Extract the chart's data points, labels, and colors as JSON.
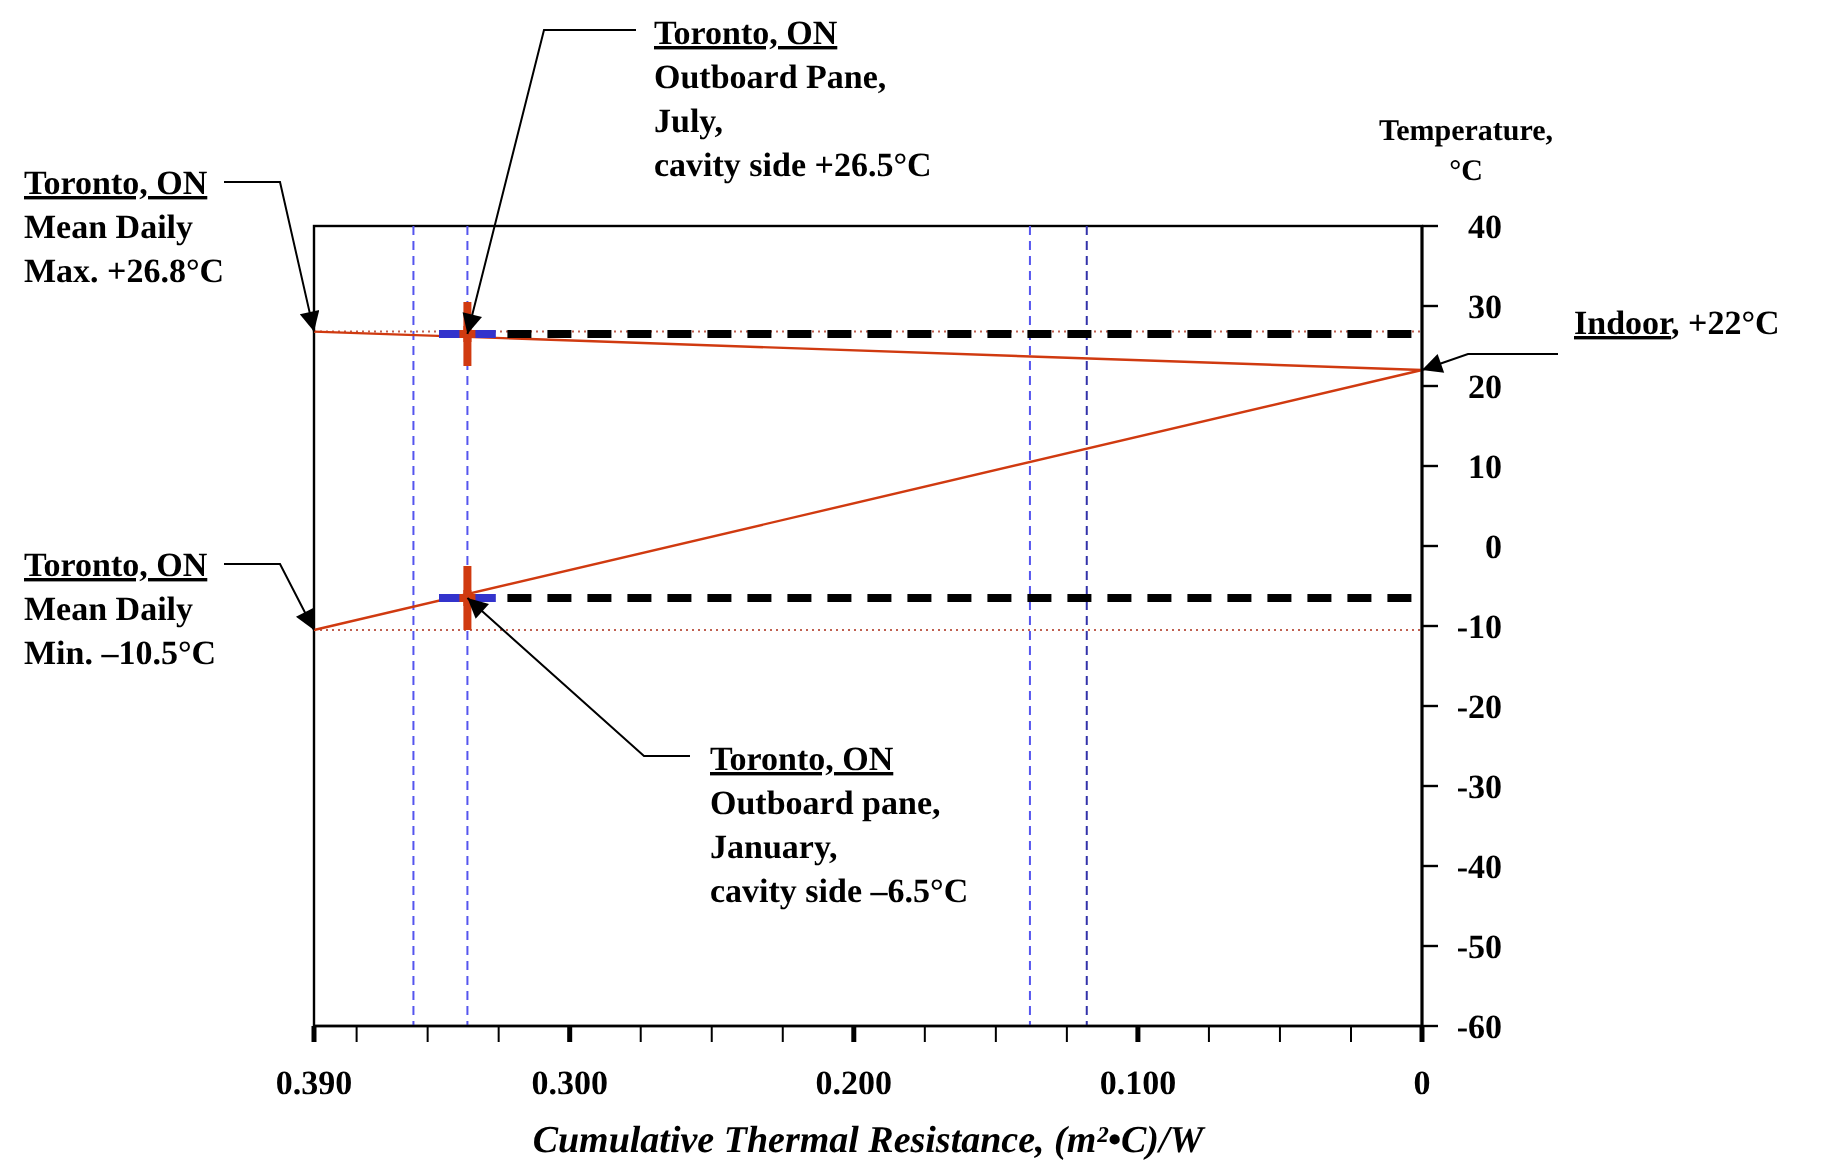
{
  "chart_data": {
    "type": "line",
    "xlabel": "Cumulative Thermal Resistance, (m²•C)/W",
    "ylabel": "Temperature,\n°C",
    "xlim": [
      0.39,
      0
    ],
    "xticks": [
      {
        "value": 0.39,
        "label": "0.390"
      },
      {
        "value": 0.375,
        "label": null
      },
      {
        "value": 0.35,
        "label": null
      },
      {
        "value": 0.325,
        "label": null
      },
      {
        "value": 0.3,
        "label": "0.300"
      },
      {
        "value": 0.275,
        "label": null
      },
      {
        "value": 0.25,
        "label": null
      },
      {
        "value": 0.225,
        "label": null
      },
      {
        "value": 0.2,
        "label": "0.200"
      },
      {
        "value": 0.175,
        "label": null
      },
      {
        "value": 0.15,
        "label": null
      },
      {
        "value": 0.125,
        "label": null
      },
      {
        "value": 0.1,
        "label": "0.100"
      },
      {
        "value": 0.075,
        "label": null
      },
      {
        "value": 0.05,
        "label": null
      },
      {
        "value": 0.025,
        "label": null
      },
      0
    ],
    "ylim": [
      -60,
      40
    ],
    "yticks": [
      -60,
      -50,
      -40,
      -30,
      -20,
      -10,
      0,
      10,
      20,
      30,
      40
    ],
    "grid": false,
    "series": [
      {
        "color": "#d03a10",
        "x": [
          0.39,
          0
        ],
        "values": [
          26.8,
          22
        ],
        "line_style": "solid"
      },
      {
        "color": "#d03a10",
        "x": [
          0.39,
          0
        ],
        "values": [
          -10.5,
          22
        ],
        "line_style": "solid"
      },
      {
        "color": "#000000",
        "x": [
          0.336,
          0
        ],
        "values": [
          26.5,
          26.5
        ],
        "line_style": "dashed"
      },
      {
        "color": "#000000",
        "x": [
          0.336,
          0
        ],
        "values": [
          -6.5,
          -6.5
        ],
        "line_style": "dashed"
      },
      {
        "type": "scatter",
        "color": "#d03a10",
        "x": [
          0.336,
          0.336
        ],
        "values": [
          26.5,
          -6.5
        ],
        "errors": [
          4,
          4
        ],
        "xerrors": [
          0.01,
          0.01
        ],
        "marker": "cross"
      }
    ],
    "ref_lines": [
      {
        "axis": "y",
        "value": 26.8,
        "color": "#c06050",
        "line_style": "dotted"
      },
      {
        "axis": "y",
        "value": -10.5,
        "color": "#c06050",
        "line_style": "dotted"
      },
      {
        "axis": "x",
        "value": 0.355,
        "color": "#5555ee",
        "line_style": "dashed"
      },
      {
        "axis": "x",
        "value": 0.336,
        "color": "#5555ee",
        "line_style": "dashed"
      },
      {
        "axis": "x",
        "value": 0.138,
        "color": "#5555ee",
        "line_style": "dashed"
      },
      {
        "axis": "x",
        "value": 0.118,
        "color": "#3333aa",
        "line_style": "dashed"
      }
    ],
    "annotations": [
      {
        "text": "Toronto, ON\nMean Daily\nMax. +26.8°C",
        "x": 0.39,
        "y": 26.8
      },
      {
        "text": "Toronto, ON\nOutboard Pane,\nJuly,\ncavity side +26.5°C",
        "x": 0.336,
        "y": 26.5
      },
      {
        "text": "Toronto, ON\nMean Daily\nMin. –10.5°C",
        "x": 0.39,
        "y": -10.5
      },
      {
        "text": "Toronto, ON\nOutboard pane,\nJanuary,\ncavity side –6.5°C",
        "x": 0.336,
        "y": -6.5
      },
      {
        "text": "Indoor, +22°C",
        "x": 0,
        "y": 22
      }
    ]
  }
}
